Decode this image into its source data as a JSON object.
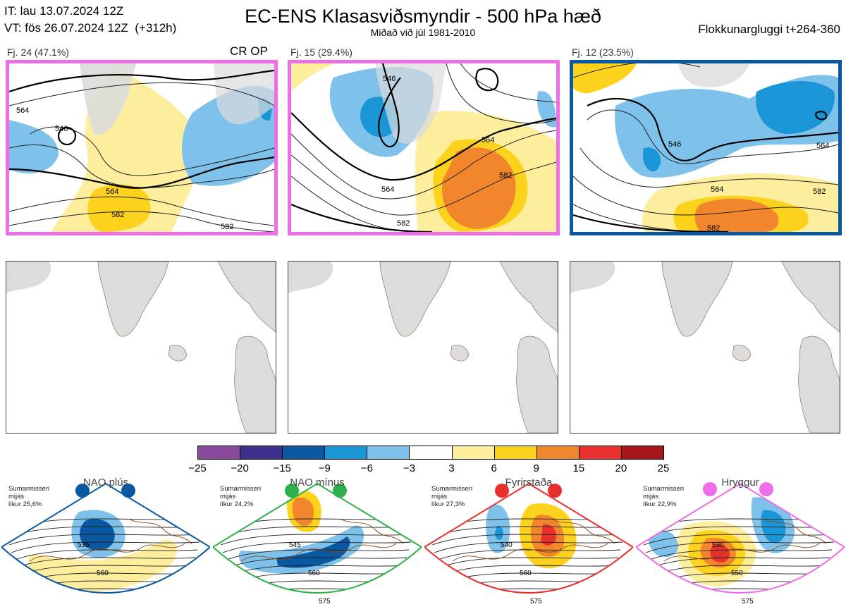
{
  "header": {
    "it": "IT: lau 13.07.2024 12Z",
    "vt": "VT: fös 26.07.2024 12Z  (+312h)",
    "title": "EC-ENS Klasasviðsmyndir - 500 hPa hæð",
    "subtitle": "Miðað við júl 1981-2010",
    "window": "Flokkunargluggi t+264-360"
  },
  "panels": [
    {
      "label": "Fj. 24 (47.1%)",
      "tag": "CR OP",
      "border_color": "#ee6ee8",
      "contour_labels": [
        "546",
        "564",
        "582",
        "564",
        "582"
      ]
    },
    {
      "label": "Fj. 15 (29.4%)",
      "tag": "",
      "border_color": "#ee6ee8",
      "contour_labels": [
        "546",
        "564",
        "582",
        "564",
        "582"
      ]
    },
    {
      "label": "Fj. 12 (23.5%)",
      "tag": "",
      "border_color": "#0a58a2",
      "contour_labels": [
        "546",
        "564",
        "582",
        "564",
        "582"
      ]
    }
  ],
  "colorbar": {
    "ticks": [
      "−25",
      "−20",
      "−15",
      "−9",
      "−6",
      "−3",
      "3",
      "6",
      "9",
      "15",
      "20",
      "25"
    ],
    "colors": [
      "#8a4a9c",
      "#3d2f8e",
      "#0a58a2",
      "#1a96d6",
      "#7ec2ec",
      "#ffffff",
      "#fcee9c",
      "#fcd21c",
      "#f2862c",
      "#e8302c",
      "#a8141c"
    ]
  },
  "regimes": [
    {
      "name": "NAO plús",
      "line1": "Sumarmisseri",
      "line2": "mijás",
      "line3": "líkur 25,6%",
      "color": "#0a58a2",
      "labels": [
        "535",
        "560"
      ]
    },
    {
      "name": "NAO mínus",
      "line1": "Sumarmisseri",
      "line2": "mijás",
      "line3": "líkur 24,2%",
      "color": "#2eb14a",
      "labels": [
        "545",
        "560",
        "575"
      ]
    },
    {
      "name": "Fyrirstaða",
      "line1": "Sumarmisseri",
      "line2": "mijás",
      "line3": "líkur 27,3%",
      "color": "#e8302c",
      "labels": [
        "540",
        "560",
        "575"
      ]
    },
    {
      "name": "Hryggur",
      "line1": "Sumarmisseri",
      "line2": "mijás",
      "line3": "líkur 22,9%",
      "color": "#ee6ee8",
      "labels": [
        "530",
        "550",
        "575"
      ]
    }
  ]
}
